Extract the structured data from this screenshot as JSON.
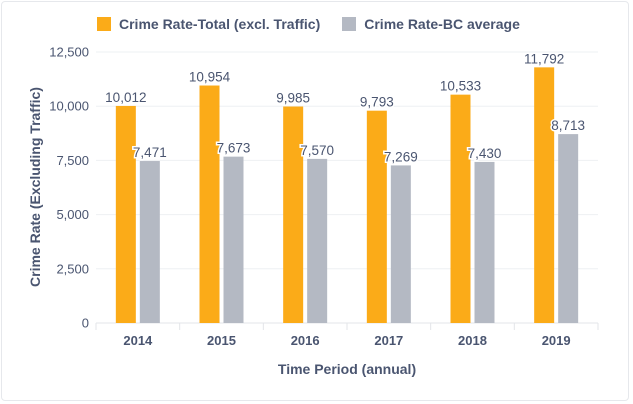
{
  "chart_data": {
    "type": "bar",
    "title": "",
    "xlabel": "Time Period (annual)",
    "ylabel": "Crime Rate (Excluding Traffic)",
    "categories": [
      "2014",
      "2015",
      "2016",
      "2017",
      "2018",
      "2019"
    ],
    "series": [
      {
        "name": "Crime Rate-Total (excl. Traffic)",
        "color": "#fbab18",
        "values": [
          10012,
          10954,
          9985,
          9793,
          10533,
          11792
        ],
        "labels": [
          "10,012",
          "10,954",
          "9,985",
          "9,793",
          "10,533",
          "11,792"
        ]
      },
      {
        "name": "Crime Rate-BC average",
        "color": "#b4b9c3",
        "values": [
          7471,
          7673,
          7570,
          7269,
          7430,
          8713
        ],
        "labels": [
          "7,471",
          "7,673",
          "7,570",
          "7,269",
          "7,430",
          "8,713"
        ]
      }
    ],
    "ylim": [
      0,
      12500
    ],
    "yticks": [
      0,
      2500,
      5000,
      7500,
      10000,
      12500
    ],
    "ytick_labels": [
      "0",
      "2,500",
      "5,000",
      "7,500",
      "10,000",
      "12,500"
    ],
    "grid": true,
    "legend_position": "top"
  }
}
